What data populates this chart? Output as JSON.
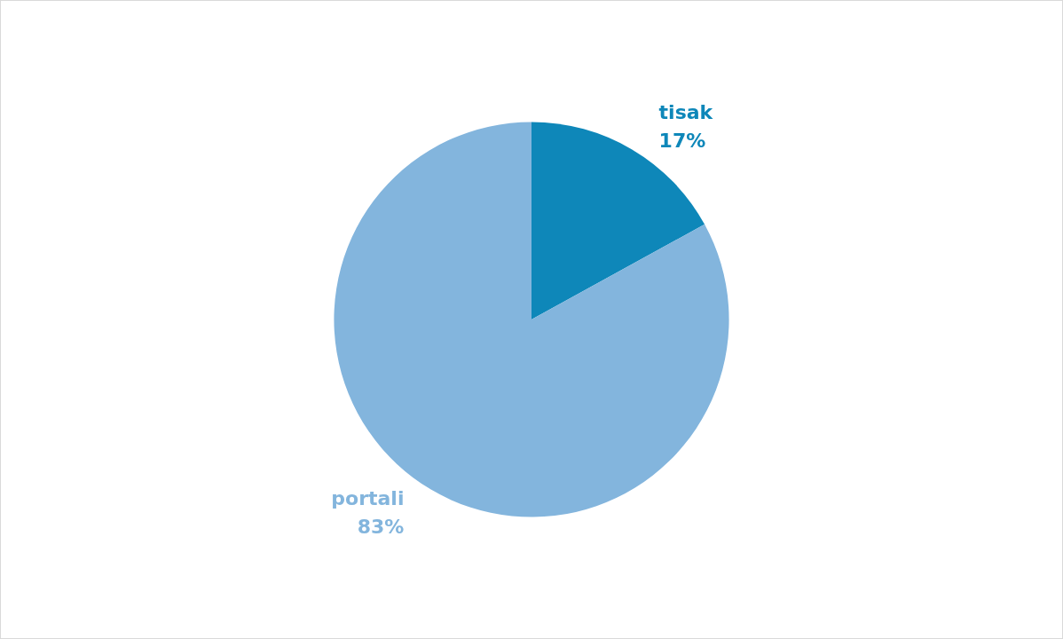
{
  "chart_data": {
    "type": "pie",
    "categories": [
      "tisak",
      "portali"
    ],
    "values": [
      17,
      83
    ],
    "colors": [
      "#0e87b9",
      "#83b5dd"
    ],
    "value_labels": [
      "17%",
      "83%"
    ]
  }
}
